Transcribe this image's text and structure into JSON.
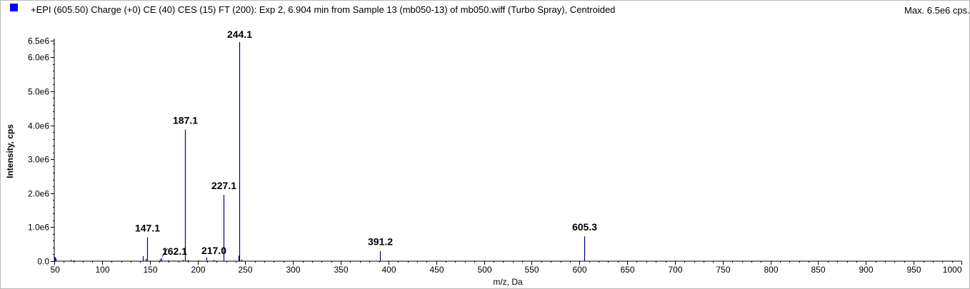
{
  "chart_data": {
    "type": "bar",
    "title": "+EPI (605.50) Charge (+0) CE (40) CES (15) FT (200): Exp 2, 6.904 min from Sample 13 (mb050-13) of mb050.wiff (Turbo Spray), Centroided",
    "max_label": "Max. 6.5e6 cps.",
    "xlabel": "m/z, Da",
    "ylabel": "Intensity, cps",
    "xlim": [
      50,
      1000
    ],
    "ylim": [
      0,
      6500000.0
    ],
    "x_ticks": [
      "50",
      "100",
      "150",
      "200",
      "250",
      "300",
      "350",
      "400",
      "450",
      "500",
      "550",
      "600",
      "650",
      "700",
      "750",
      "800",
      "850",
      "900",
      "950",
      "1000"
    ],
    "x_tick_values": [
      50,
      100,
      150,
      200,
      250,
      300,
      350,
      400,
      450,
      500,
      550,
      600,
      650,
      700,
      750,
      800,
      850,
      900,
      950,
      1000
    ],
    "y_ticks": [
      "0.0",
      "1.0e6",
      "2.0e6",
      "3.0e6",
      "4.0e6",
      "5.0e6",
      "6.0e6",
      "6.5e6"
    ],
    "y_tick_values": [
      0,
      1000000,
      2000000,
      3000000,
      4000000,
      5000000,
      6000000,
      6500000
    ],
    "series_color": "#00008b",
    "peaks": [
      {
        "mz": 51.0,
        "intensity": 120000
      },
      {
        "mz": 67.0,
        "intensity": 40000
      },
      {
        "mz": 71.0,
        "intensity": 20000
      },
      {
        "mz": 143.0,
        "intensity": 150000
      },
      {
        "mz": 145.5,
        "intensity": 70000
      },
      {
        "mz": 147.1,
        "intensity": 700000,
        "label": "147.1"
      },
      {
        "mz": 161.0,
        "intensity": 60000
      },
      {
        "mz": 162.1,
        "intensity": 90000,
        "label": "162.1"
      },
      {
        "mz": 169.0,
        "intensity": 30000
      },
      {
        "mz": 174.0,
        "intensity": 20000
      },
      {
        "mz": 185.0,
        "intensity": 40000
      },
      {
        "mz": 187.1,
        "intensity": 3870000,
        "label": "187.1"
      },
      {
        "mz": 190.0,
        "intensity": 30000
      },
      {
        "mz": 201.0,
        "intensity": 25000
      },
      {
        "mz": 209.0,
        "intensity": 110000
      },
      {
        "mz": 217.0,
        "intensity": 40000,
        "label": "217.0"
      },
      {
        "mz": 227.1,
        "intensity": 1950000,
        "label": "227.1"
      },
      {
        "mz": 243.0,
        "intensity": 160000
      },
      {
        "mz": 244.1,
        "intensity": 6450000,
        "label": "244.1"
      },
      {
        "mz": 246.0,
        "intensity": 50000
      },
      {
        "mz": 391.2,
        "intensity": 300000,
        "label": "391.2"
      },
      {
        "mz": 605.3,
        "intensity": 730000,
        "label": "605.3"
      }
    ]
  }
}
